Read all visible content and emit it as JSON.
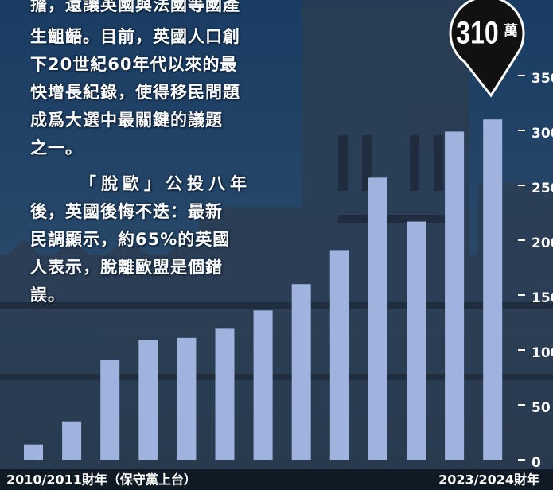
{
  "article": {
    "lines": [
      "擔，還讓英國與法國等國產",
      "生齟齬。目前，英國人口創",
      "下20世紀60年代以來的最",
      "快增長紀錄，使得移民問題",
      "成爲大選中最關鍵的議題",
      "之一。",
      "「脫歐」公投八年",
      "後，英國後悔不迭：最新",
      "民調顯示，約65%的英國",
      "人表示，脫離歐盟是個錯",
      "誤。"
    ]
  },
  "chart_data": {
    "type": "bar",
    "categories": [
      "2010/2011財年（保守黨上台）",
      null,
      null,
      null,
      null,
      null,
      null,
      null,
      null,
      null,
      null,
      null,
      "2023/2024財年"
    ],
    "values": [
      14,
      35,
      91,
      109,
      111,
      120,
      136,
      160,
      191,
      257,
      217,
      299,
      310
    ],
    "value_labels": [
      null,
      null,
      null,
      null,
      null,
      null,
      null,
      null,
      null,
      null,
      null,
      null,
      "310"
    ],
    "unit": "萬",
    "color": "#9fb3de",
    "ylim": [
      0,
      350
    ],
    "yticks": [
      0,
      50,
      100,
      150,
      200,
      250,
      300,
      350
    ]
  }
}
